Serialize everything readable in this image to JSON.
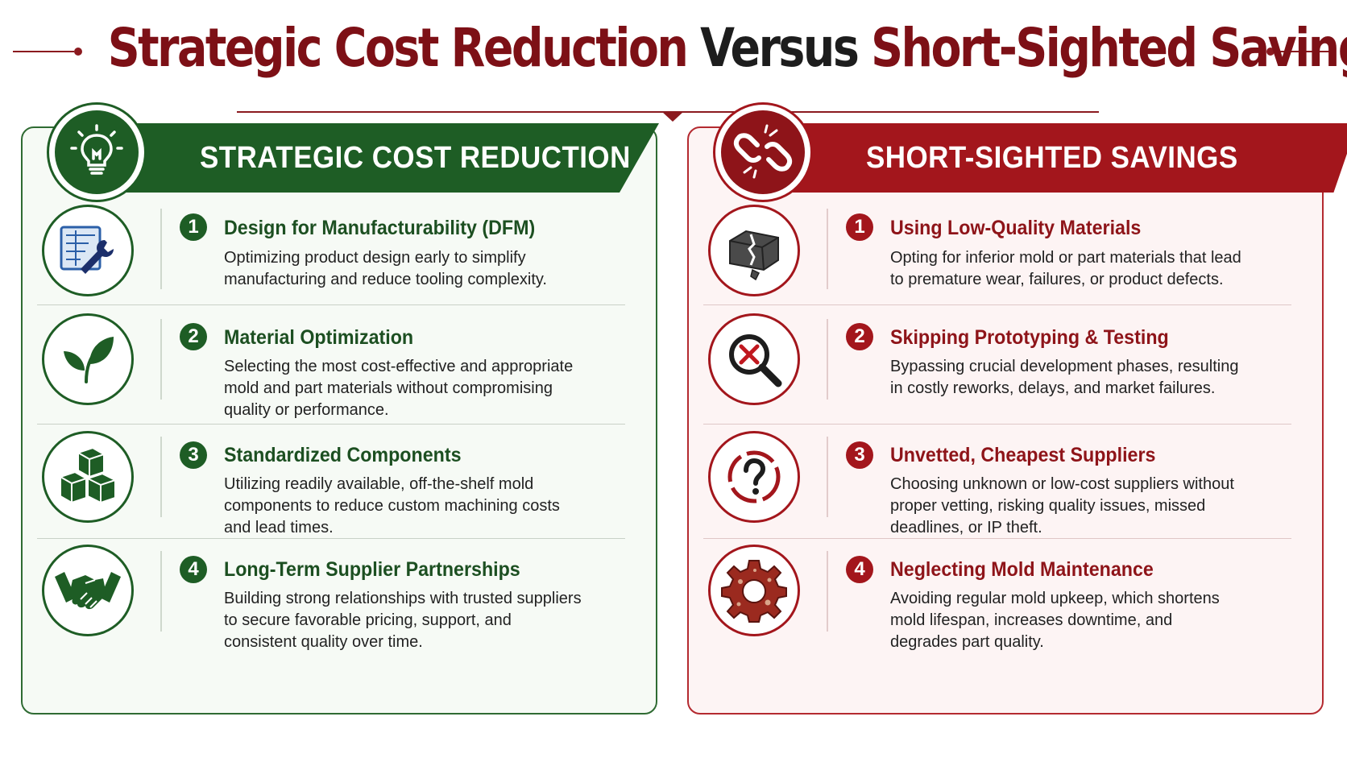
{
  "title": {
    "part1": "Strategic Cost Reduction",
    "part2": "Versus",
    "part3": "Short-Sighted Savings"
  },
  "colors": {
    "green": "#1e5d25",
    "red": "#a3161c",
    "title_red": "#7d1016"
  },
  "left_panel": {
    "heading": "STRATEGIC COST REDUCTION",
    "badge_icon": "lightbulb-icon",
    "items": [
      {
        "number": "1",
        "icon": "blueprint-wrench-icon",
        "title": "Design for Manufacturability (DFM)",
        "description": "Optimizing product design early to simplify manufacturing and reduce tooling complexity."
      },
      {
        "number": "2",
        "icon": "leaf-icon",
        "title": "Material Optimization",
        "description": "Selecting the most cost-effective and appropriate mold and part materials without compromising quality or performance."
      },
      {
        "number": "3",
        "icon": "stacked-blocks-icon",
        "title": "Standardized Components",
        "description": "Utilizing readily available, off-the-shelf mold components to reduce custom machining costs and lead times."
      },
      {
        "number": "4",
        "icon": "handshake-icon",
        "title": "Long-Term Supplier Partnerships",
        "description": "Building strong relationships with trusted suppliers to secure favorable pricing, support, and consistent quality over time."
      }
    ]
  },
  "right_panel": {
    "heading": "SHORT-SIGHTED SAVINGS",
    "badge_icon": "broken-chain-icon",
    "items": [
      {
        "number": "1",
        "icon": "cracked-block-icon",
        "title": "Using Low-Quality Materials",
        "description": "Opting for inferior mold or part materials that lead to premature wear, failures, or product defects."
      },
      {
        "number": "2",
        "icon": "magnifier-x-icon",
        "title": "Skipping Prototyping & Testing",
        "description": "Bypassing crucial development phases, resulting in costly reworks, delays, and market failures."
      },
      {
        "number": "3",
        "icon": "question-mark-icon",
        "title": "Unvetted, Cheapest Suppliers",
        "description": "Choosing unknown or low-cost suppliers without proper vetting, risking quality issues, missed deadlines, or IP theft."
      },
      {
        "number": "4",
        "icon": "rusty-gear-icon",
        "title": "Neglecting Mold Maintenance",
        "description": "Avoiding regular mold upkeep, which shortens mold lifespan, increases downtime, and degrades part quality."
      }
    ]
  }
}
